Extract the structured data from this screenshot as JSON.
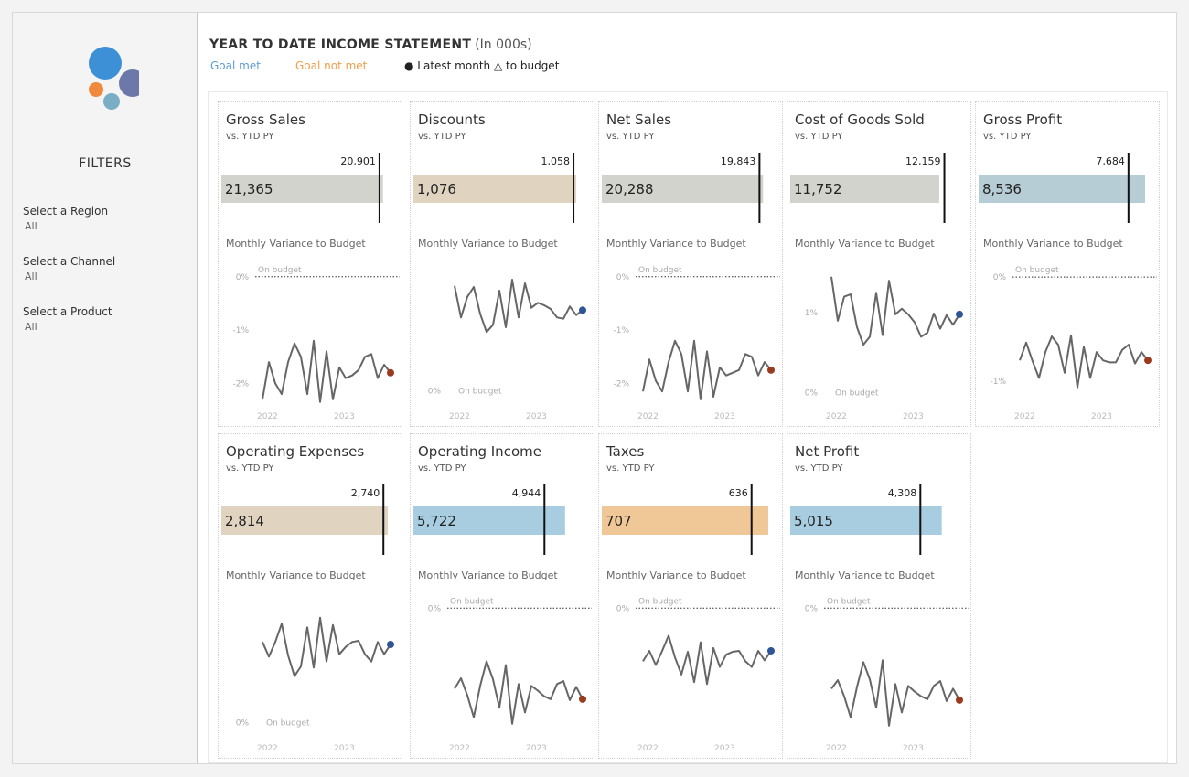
{
  "sidebar": {
    "filters_title": "FILTERS",
    "filters": [
      {
        "label": "Select a Region",
        "value": "All"
      },
      {
        "label": "Select a Channel",
        "value": "All"
      },
      {
        "label": "Select a Product",
        "value": "All"
      }
    ]
  },
  "header": {
    "title": "YEAR TO DATE INCOME STATEMENT",
    "subtitle": "(In 000s)",
    "legend": {
      "goal_met": "Goal met",
      "goal_not_met": "Goal not met",
      "latest": "● Latest month △ to budget"
    }
  },
  "colors": {
    "goal_met": "#5b9bd5",
    "goal_not_met": "#ef9e45",
    "line": "#666666",
    "latest_up": "#2e5597",
    "latest_down": "#9a3b1f"
  },
  "logo_icon": "circles-logo-icon",
  "chart_data": [
    {
      "type": "bar",
      "title": "Gross Sales",
      "subtitle": "vs. YTD PY",
      "value": 21365,
      "value_label": "21,365",
      "target": 20901,
      "target_label": "20,901",
      "bar_color": "#d1d3cc",
      "bar_max": 22000,
      "sparkline_title": "Monthly Variance to Budget",
      "y_ticks": [
        {
          "value": 0,
          "label": "0%"
        },
        {
          "value": -1,
          "label": "-1%"
        },
        {
          "value": -2,
          "label": "-2%"
        }
      ],
      "ref_label": "On budget",
      "ref_value": 0,
      "ylim": [
        -2.25,
        0.15
      ],
      "ref_style": "dotted",
      "x_labels": [
        {
          "index": 0,
          "label": "2022"
        },
        {
          "index": 12,
          "label": "2023"
        }
      ],
      "values": [
        -2.3,
        -1.6,
        -2.0,
        -2.2,
        -1.6,
        -1.25,
        -1.5,
        -2.2,
        -1.2,
        -2.35,
        -1.4,
        -2.3,
        -1.7,
        -1.9,
        -1.85,
        -1.75,
        -1.5,
        -1.45,
        -1.9,
        -1.65,
        -1.8
      ],
      "latest_color": "#9a3b1f"
    },
    {
      "type": "bar",
      "title": "Discounts",
      "subtitle": "vs. YTD PY",
      "value": 1076,
      "value_label": "1,076",
      "target": 1058,
      "target_label": "1,058",
      "bar_color": "#e0d4c1",
      "bar_max": 1100,
      "sparkline_title": "Monthly Variance to Budget",
      "y_ticks": [
        {
          "value": 0,
          "label": "0%"
        }
      ],
      "ref_label": "On budget",
      "ref_value": 0,
      "ylim": [
        -0.05,
        1.0
      ],
      "ref_style": "none",
      "x_labels": [
        {
          "index": 0,
          "label": "2022"
        },
        {
          "index": 12,
          "label": "2023"
        }
      ],
      "values": [
        0.86,
        0.6,
        0.77,
        0.85,
        0.63,
        0.48,
        0.54,
        0.82,
        0.52,
        0.91,
        0.6,
        0.88,
        0.68,
        0.72,
        0.7,
        0.67,
        0.6,
        0.59,
        0.69,
        0.62,
        0.66
      ],
      "latest_color": "#2e5597"
    },
    {
      "type": "bar",
      "title": "Net Sales",
      "subtitle": "vs. YTD PY",
      "value": 20288,
      "value_label": "20,288",
      "target": 19843,
      "target_label": "19,843",
      "bar_color": "#d1d3cc",
      "bar_max": 20950,
      "sparkline_title": "Monthly Variance to Budget",
      "y_ticks": [
        {
          "value": 0,
          "label": "0%"
        },
        {
          "value": -1,
          "label": "-1%"
        },
        {
          "value": -2,
          "label": "-2%"
        }
      ],
      "ref_label": "On budget",
      "ref_value": 0,
      "ylim": [
        -2.25,
        0.15
      ],
      "ref_style": "dotted",
      "x_labels": [
        {
          "index": 0,
          "label": "2022"
        },
        {
          "index": 12,
          "label": "2023"
        }
      ],
      "values": [
        -2.15,
        -1.55,
        -1.95,
        -2.15,
        -1.6,
        -1.2,
        -1.45,
        -2.15,
        -1.2,
        -2.3,
        -1.4,
        -2.25,
        -1.7,
        -1.85,
        -1.8,
        -1.75,
        -1.45,
        -1.5,
        -1.85,
        -1.6,
        -1.75
      ],
      "latest_color": "#9a3b1f"
    },
    {
      "type": "bar",
      "title": "Cost of Goods Sold",
      "subtitle": "vs. YTD PY",
      "value": 11752,
      "value_label": "11,752",
      "target": 12159,
      "target_label": "12,159",
      "bar_color": "#d1d3cc",
      "bar_max": 13130,
      "sparkline_title": "Monthly Variance to Budget",
      "y_ticks": [
        {
          "value": 0,
          "label": "0%"
        },
        {
          "value": 1,
          "label": "1%"
        }
      ],
      "ref_label": "On budget",
      "ref_value": 0,
      "ylim": [
        -0.05,
        1.55
      ],
      "ref_style": "none",
      "x_labels": [
        {
          "index": 0,
          "label": "2022"
        },
        {
          "index": 12,
          "label": "2023"
        }
      ],
      "values": [
        1.45,
        0.9,
        1.2,
        1.23,
        0.82,
        0.6,
        0.7,
        1.25,
        0.72,
        1.4,
        0.98,
        1.05,
        0.98,
        0.88,
        0.7,
        0.75,
        0.99,
        0.8,
        0.97,
        0.85,
        0.98
      ],
      "latest_color": "#2e5597"
    },
    {
      "type": "bar",
      "title": "Gross Profit",
      "subtitle": "vs. YTD PY",
      "value": 8536,
      "value_label": "8,536",
      "target": 7684,
      "target_label": "7,684",
      "bar_color": "#b7cdd6",
      "bar_max": 8536,
      "sparkline_title": "Monthly Variance to Budget",
      "y_ticks": [
        {
          "value": 0,
          "label": "0%"
        },
        {
          "value": -1,
          "label": "-1%"
        }
      ],
      "ref_label": "On budget",
      "ref_value": 0,
      "ylim": [
        -1.15,
        0.08
      ],
      "ref_style": "dotted",
      "x_labels": [
        {
          "index": 0,
          "label": "2022"
        },
        {
          "index": 12,
          "label": "2023"
        }
      ],
      "values": [
        -0.8,
        -0.63,
        -0.81,
        -0.97,
        -0.72,
        -0.57,
        -0.65,
        -0.92,
        -0.56,
        -1.06,
        -0.67,
        -0.97,
        -0.72,
        -0.8,
        -0.82,
        -0.82,
        -0.7,
        -0.65,
        -0.83,
        -0.72,
        -0.8
      ],
      "latest_color": "#9a3b1f"
    },
    {
      "type": "bar",
      "title": "Operating Expenses",
      "subtitle": "vs. YTD PY",
      "value": 2814,
      "value_label": "2,814",
      "target": 2740,
      "target_label": "2,740",
      "bar_color": "#e0d4c1",
      "bar_max": 2814,
      "sparkline_title": "Monthly Variance to Budget",
      "y_ticks": [
        {
          "value": 0,
          "label": "0%"
        }
      ],
      "ref_label": "On budget",
      "ref_value": 0,
      "ylim": [
        -0.05,
        1.0
      ],
      "ref_style": "none",
      "x_labels": [
        {
          "index": 0,
          "label": "2022"
        },
        {
          "index": 12,
          "label": "2023"
        }
      ],
      "values": [
        0.66,
        0.54,
        0.66,
        0.81,
        0.55,
        0.38,
        0.46,
        0.78,
        0.45,
        0.86,
        0.5,
        0.8,
        0.56,
        0.62,
        0.66,
        0.67,
        0.56,
        0.5,
        0.66,
        0.56,
        0.64
      ],
      "latest_color": "#2e5597"
    },
    {
      "type": "bar",
      "title": "Operating Income",
      "subtitle": "vs. YTD PY",
      "value": 5722,
      "value_label": "5,722",
      "target": 4944,
      "target_label": "4,944",
      "bar_color": "#a8cde0",
      "bar_max": 6280,
      "sparkline_title": "Monthly Variance to Budget",
      "y_ticks": [
        {
          "value": 0,
          "label": "0%"
        }
      ],
      "ref_label": "On budget",
      "ref_value": 0,
      "ylim": [
        -1.27,
        0.08
      ],
      "ref_style": "dotted",
      "x_labels": [
        {
          "index": 0,
          "label": "2022"
        },
        {
          "index": 12,
          "label": "2023"
        }
      ],
      "values": [
        -0.85,
        -0.74,
        -0.92,
        -1.15,
        -0.82,
        -0.56,
        -0.75,
        -1.05,
        -0.6,
        -1.22,
        -0.8,
        -1.1,
        -0.82,
        -0.87,
        -0.93,
        -0.96,
        -0.8,
        -0.77,
        -0.97,
        -0.83,
        -0.96
      ],
      "latest_color": "#9a3b1f"
    },
    {
      "type": "bar",
      "title": "Taxes",
      "subtitle": "vs. YTD PY",
      "value": 707,
      "value_label": "707",
      "target": 636,
      "target_label": "636",
      "bar_color": "#f0c898",
      "bar_max": 707,
      "sparkline_title": "Monthly Variance to Budget",
      "y_ticks": [
        {
          "value": 0,
          "label": "0%"
        }
      ],
      "ref_label": "On budget",
      "ref_value": 0,
      "ylim": [
        -1.27,
        0.08
      ],
      "ref_style": "dotted",
      "x_labels": [
        {
          "index": 0,
          "label": "2022"
        },
        {
          "index": 12,
          "label": "2023"
        }
      ],
      "values": [
        -0.56,
        -0.45,
        -0.6,
        -0.45,
        -0.29,
        -0.52,
        -0.7,
        -0.46,
        -0.78,
        -0.36,
        -0.8,
        -0.42,
        -0.62,
        -0.49,
        -0.46,
        -0.45,
        -0.56,
        -0.62,
        -0.45,
        -0.55,
        -0.45
      ],
      "latest_color": "#2e5597"
    },
    {
      "type": "bar",
      "title": "Net Profit",
      "subtitle": "vs. YTD PY",
      "value": 5015,
      "value_label": "5,015",
      "target": 4308,
      "target_label": "4,308",
      "bar_color": "#a8cde0",
      "bar_max": 5510,
      "sparkline_title": "Monthly Variance to Budget",
      "y_ticks": [
        {
          "value": 0,
          "label": "0%"
        }
      ],
      "ref_label": "On budget",
      "ref_value": 0,
      "ylim": [
        -1.27,
        0.08
      ],
      "ref_style": "dotted",
      "x_labels": [
        {
          "index": 0,
          "label": "2022"
        },
        {
          "index": 12,
          "label": "2023"
        }
      ],
      "values": [
        -0.85,
        -0.76,
        -0.93,
        -1.15,
        -0.83,
        -0.57,
        -0.75,
        -1.05,
        -0.55,
        -1.24,
        -0.8,
        -1.1,
        -0.82,
        -0.88,
        -0.93,
        -0.96,
        -0.82,
        -0.77,
        -0.98,
        -0.85,
        -0.97
      ],
      "latest_color": "#9a3b1f"
    }
  ]
}
